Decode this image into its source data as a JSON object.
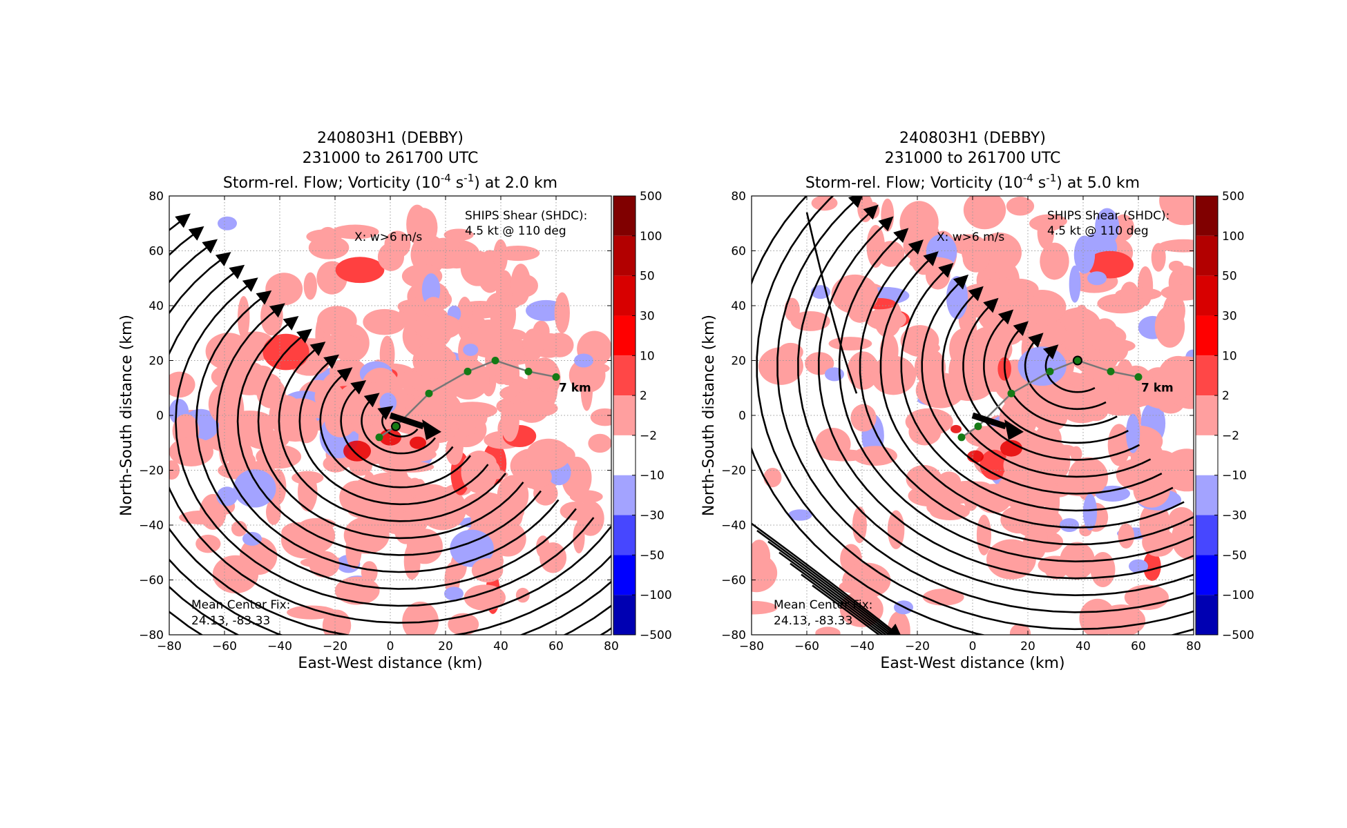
{
  "colors": {
    "pos_2_10": "#ff9f9f",
    "pos_10_30": "#ff4040",
    "pos_30_50": "#e60000",
    "neg_2_10": "#a3a3ff",
    "neg_10_30": "#4040ff",
    "stream": "#000000",
    "track": "#777777",
    "track_point": "#157a15"
  },
  "colorbar": {
    "levels": [
      "500",
      "100",
      "50",
      "30",
      "10",
      "2",
      "−2",
      "−10",
      "−30",
      "−50",
      "−100",
      "−500"
    ],
    "colors": [
      "#800000",
      "#b20000",
      "#d80000",
      "#ff0000",
      "#ff4747",
      "#ff9f9f",
      "#ffffff",
      "#a3a3ff",
      "#4747ff",
      "#0000ff",
      "#0000b2",
      "#000080"
    ]
  },
  "chart_data": [
    {
      "type": "contour map with streamlines",
      "title_line1": "240803H1 (DEBBY)",
      "title_line2": "231000 to 261700 UTC",
      "title_line3_pre": "Storm-rel. Flow; Vorticity (10",
      "title_exp1": "-4",
      "title_mid": " s",
      "title_exp2": "-1",
      "title_line3_post": ") at 2.0 km",
      "xlabel": "East-West distance (km)",
      "ylabel": "North-South distance (km)",
      "xlim": [
        -80,
        80
      ],
      "ylim": [
        -80,
        80
      ],
      "xticks": [
        "−80",
        "−60",
        "−40",
        "−20",
        "0",
        "20",
        "40",
        "60",
        "80"
      ],
      "yticks": [
        "80",
        "60",
        "40",
        "20",
        "0",
        "−20",
        "−40",
        "−60",
        "−80"
      ],
      "grid": true,
      "shear_line1": "SHIPS Shear (SHDC):",
      "shear_line2": "4.5 kt @ 110 deg",
      "updraft_label": "X: w>6 m/s",
      "center_label": "Mean Center Fix:",
      "center_value": "24.13, -83.33",
      "track_end_label": "7 km",
      "tilt_track": [
        [
          -4,
          -8
        ],
        [
          2,
          -4
        ],
        [
          14,
          8
        ],
        [
          28,
          16
        ],
        [
          38,
          20
        ],
        [
          50,
          16
        ],
        [
          60,
          14
        ]
      ],
      "shear_arrow": {
        "from": [
          0,
          0
        ],
        "to": [
          14,
          -5
        ]
      }
    },
    {
      "type": "contour map with streamlines",
      "title_line1": "240803H1 (DEBBY)",
      "title_line2": "231000 to 261700 UTC",
      "title_line3_pre": "Storm-rel. Flow; Vorticity (10",
      "title_exp1": "-4",
      "title_mid": " s",
      "title_exp2": "-1",
      "title_line3_post": ") at 5.0 km",
      "xlabel": "East-West distance (km)",
      "ylabel": "North-South distance (km)",
      "xlim": [
        -80,
        80
      ],
      "ylim": [
        -80,
        80
      ],
      "xticks": [
        "−80",
        "−60",
        "−40",
        "−20",
        "0",
        "20",
        "40",
        "60",
        "80"
      ],
      "yticks": [
        "80",
        "60",
        "40",
        "20",
        "0",
        "−20",
        "−40",
        "−60",
        "−80"
      ],
      "grid": true,
      "shear_line1": "SHIPS Shear (SHDC):",
      "shear_line2": "4.5 kt @ 110 deg",
      "updraft_label": "X: w>6 m/s",
      "center_label": "Mean Center Fix:",
      "center_value": "24.13, -83.33",
      "track_end_label": "7 km",
      "tilt_track": [
        [
          -4,
          -8
        ],
        [
          2,
          -4
        ],
        [
          14,
          8
        ],
        [
          28,
          16
        ],
        [
          38,
          20
        ],
        [
          50,
          16
        ],
        [
          60,
          14
        ]
      ],
      "shear_arrow": {
        "from": [
          0,
          0
        ],
        "to": [
          14,
          -5
        ]
      }
    }
  ]
}
